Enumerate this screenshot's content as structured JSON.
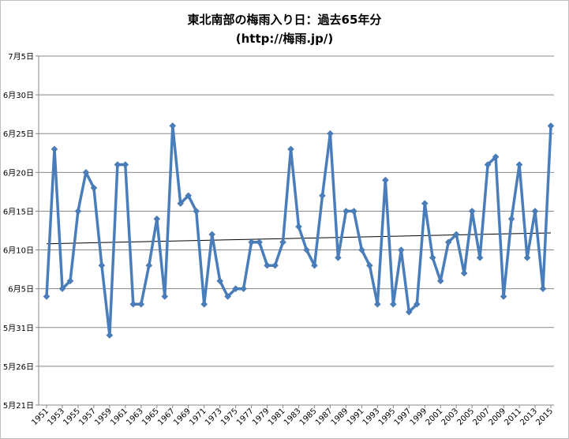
{
  "chart_data": {
    "type": "line",
    "title": "東北南部の梅雨入り日：過去65年分",
    "subtitle": "(http://梅雨.jp/)",
    "y_unit": "days after May 21",
    "ylim": [
      0,
      45
    ],
    "y_ticks": [
      {
        "value": 0,
        "label": "5月21日"
      },
      {
        "value": 5,
        "label": "5月26日"
      },
      {
        "value": 10,
        "label": "5月31日"
      },
      {
        "value": 15,
        "label": "6月5日"
      },
      {
        "value": 20,
        "label": "6月10日"
      },
      {
        "value": 25,
        "label": "6月15日"
      },
      {
        "value": 30,
        "label": "6月20日"
      },
      {
        "value": 35,
        "label": "6月25日"
      },
      {
        "value": 40,
        "label": "6月30日"
      },
      {
        "value": 45,
        "label": "7月5日"
      }
    ],
    "x_tick_labels": [
      "1951",
      "1953",
      "1955",
      "1957",
      "1959",
      "1961",
      "1963",
      "1965",
      "1967",
      "1969",
      "1971",
      "1973",
      "1975",
      "1977",
      "1979",
      "1981",
      "1983",
      "1985",
      "1987",
      "1989",
      "1991",
      "1993",
      "1995",
      "1997",
      "1999",
      "2001",
      "2003",
      "2005",
      "2007",
      "2009",
      "2011",
      "2013",
      "2015"
    ],
    "series": [
      {
        "name": "梅雨入り日",
        "color": "#4a7ebb",
        "years": [
          1951,
          1952,
          1953,
          1954,
          1955,
          1956,
          1957,
          1958,
          1959,
          1960,
          1961,
          1962,
          1963,
          1964,
          1965,
          1966,
          1967,
          1968,
          1969,
          1970,
          1971,
          1972,
          1973,
          1974,
          1975,
          1976,
          1977,
          1978,
          1979,
          1980,
          1981,
          1982,
          1983,
          1984,
          1985,
          1986,
          1987,
          1988,
          1989,
          1990,
          1991,
          1992,
          1993,
          1994,
          1995,
          1996,
          1997,
          1998,
          1999,
          2000,
          2001,
          2002,
          2003,
          2004,
          2005,
          2006,
          2007,
          2008,
          2009,
          2010,
          2011,
          2012,
          2013,
          2014,
          2015
        ],
        "values": [
          14,
          33,
          15,
          16,
          25,
          30,
          28,
          18,
          9,
          31,
          31,
          13,
          13,
          18,
          24,
          14,
          36,
          26,
          27,
          25,
          13,
          22,
          16,
          14,
          15,
          15,
          21,
          21,
          18,
          18,
          21,
          33,
          23,
          20,
          18,
          27,
          35,
          19,
          25,
          25,
          20,
          18,
          13,
          29,
          13,
          20,
          12,
          13,
          26,
          19,
          16,
          21,
          22,
          17,
          25,
          19,
          31,
          32,
          14,
          24,
          31,
          19,
          25,
          15,
          36
        ]
      }
    ],
    "trendline": {
      "start": 20.8,
      "end": 22.2,
      "color": "#000000"
    }
  }
}
